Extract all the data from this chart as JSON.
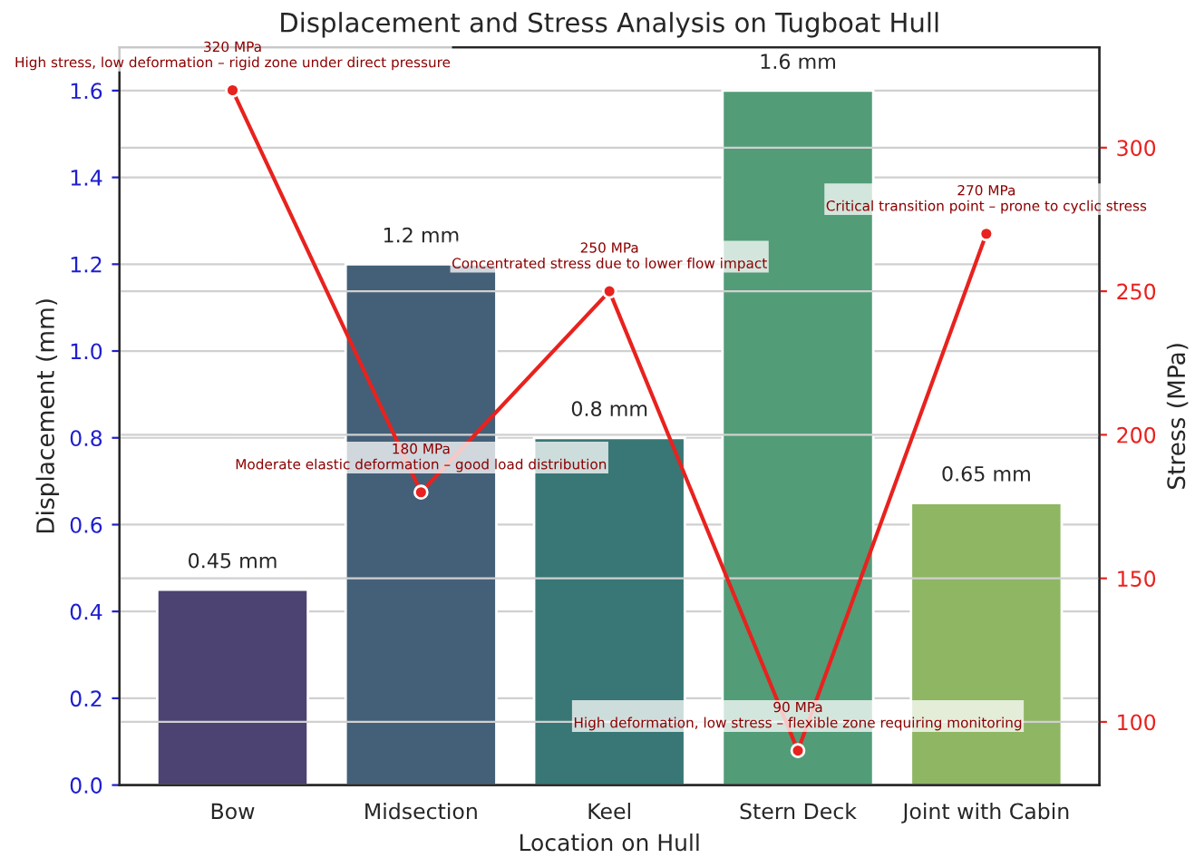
{
  "chart_data": {
    "type": "bar",
    "title": "Displacement and Stress Analysis on Tugboat Hull",
    "xlabel": "Location on Hull",
    "ylabel": "Displacement (mm)",
    "y2label": "Stress (MPa)",
    "categories": [
      "Bow",
      "Midsection",
      "Keel",
      "Stern Deck",
      "Joint with Cabin"
    ],
    "series": [
      {
        "values": [
          0.45,
          1.2,
          0.8,
          1.6,
          0.65
        ],
        "colors": [
          "#473b7b",
          "#3b6181",
          "#2e8180",
          "#46a878",
          "#8fc455"
        ],
        "value_labels": [
          "0.45 mm",
          "1.2 mm",
          "0.8 mm",
          "1.6 mm",
          "0.65 mm"
        ]
      },
      {
        "type": "line",
        "axis": "y2",
        "color": "#e8221e",
        "values": [
          320,
          180,
          250,
          90,
          270
        ],
        "marker": "circle",
        "line_style": "solid"
      }
    ],
    "ylim": [
      0,
      1.7
    ],
    "yticks": [
      {
        "value": 0,
        "label": "0.0"
      },
      0.2,
      0.4,
      0.6,
      0.8,
      {
        "value": 1,
        "label": "1.0"
      },
      1.2,
      1.4,
      1.6
    ],
    "y2lim": [
      78,
      335
    ],
    "y2ticks": [
      100,
      150,
      200,
      250,
      300
    ],
    "grid": true,
    "legend": false,
    "annotations": [
      "320 MPa\nHigh stress, low deformation – rigid zone under direct pressure",
      "180 MPa\nModerate elastic deformation – good load distribution",
      "250 MPa\nConcentrated stress due to lower flow impact",
      "90 MPa\nHigh deformation, low stress – flexible zone requiring monitoring",
      "270 MPa\nCritical transition point – prone to cyclic stress"
    ]
  }
}
